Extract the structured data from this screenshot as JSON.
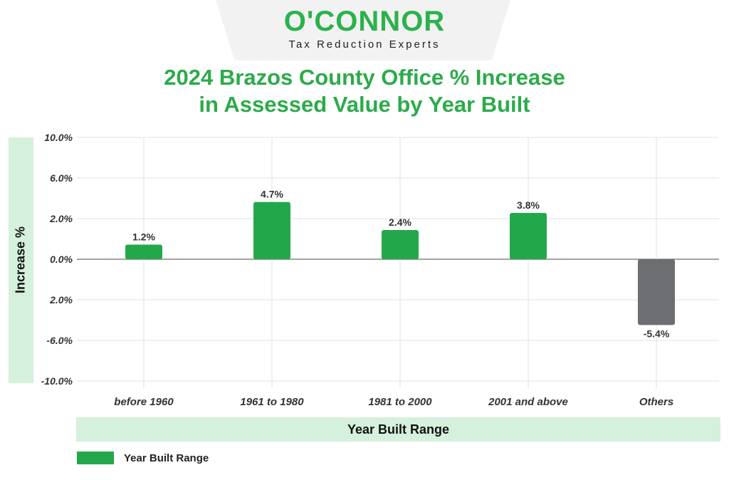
{
  "logo": {
    "name": "O'CONNOR",
    "tagline": "Tax Reduction Experts"
  },
  "chart_data": {
    "type": "bar",
    "title": "2024 Brazos County Office % Increase in Assessed Value by Year Built",
    "title_lines": [
      "2024 Brazos County Office % Increase",
      "in Assessed Value by Year Built"
    ],
    "xlabel": "Year Built Range",
    "ylabel": "Increase %",
    "categories": [
      "before 1960",
      "1961 to 1980",
      "1981 to 2000",
      "2001 and above",
      "Others"
    ],
    "values": [
      1.2,
      4.7,
      2.4,
      3.8,
      -5.4
    ],
    "data_labels": [
      "1.2%",
      "4.7%",
      "2.4%",
      "3.8%",
      "-5.4%"
    ],
    "bar_colors": [
      "#22a84a",
      "#22a84a",
      "#22a84a",
      "#22a84a",
      "#6d6e71"
    ],
    "ytick_labels": [
      "10.0%",
      "6.0%",
      "2.0%",
      "0.0%",
      "2.0%",
      "-6.0%",
      "-10.0%"
    ],
    "ylim": [
      -10,
      10
    ],
    "grid": true,
    "legend": {
      "position": "bottom-left",
      "entries": [
        {
          "name": "Year Built Range",
          "color": "#22a84a"
        }
      ]
    }
  }
}
